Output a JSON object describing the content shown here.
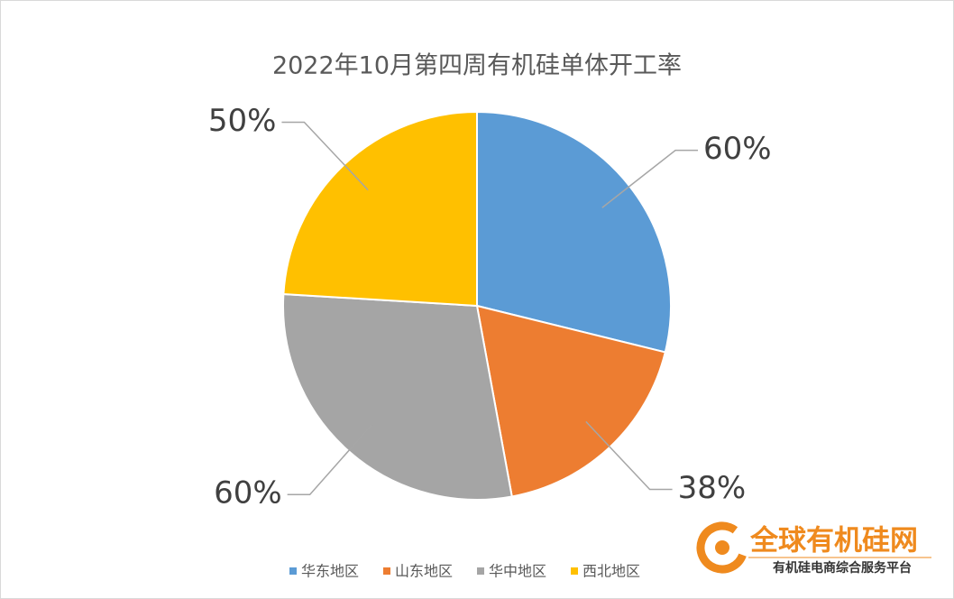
{
  "chart_data": {
    "type": "pie",
    "title": "2022年10月第四周有机硅单体开工率",
    "categories": [
      "华东地区",
      "山东地区",
      "华中地区",
      "西北地区"
    ],
    "values": [
      60,
      38,
      60,
      50
    ],
    "value_labels": [
      "60%",
      "38%",
      "60%",
      "50%"
    ],
    "colors": [
      "#5b9bd5",
      "#ed7d31",
      "#a5a5a5",
      "#ffc000"
    ],
    "legend": "bottom",
    "watermark": {
      "title": "全球有机硅网",
      "subtitle": "有机硅电商综合服务平台"
    }
  }
}
